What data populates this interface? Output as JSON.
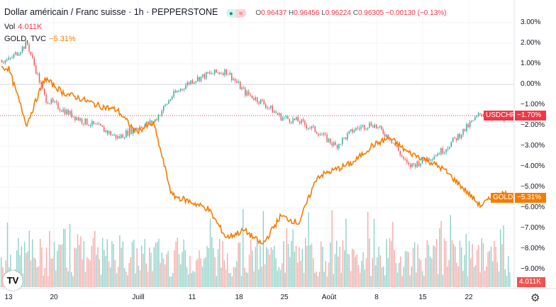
{
  "header": {
    "symbol_title": "Dollar américain / Franc suisse",
    "interval": "1h",
    "exchange": "PEPPERSTONE",
    "separator": "·",
    "ohlc": {
      "o_label": "O",
      "o": "0.96437",
      "h_label": "H",
      "h": "0.96456",
      "l_label": "L",
      "l": "0.96224",
      "c_label": "C",
      "c": "0.96305",
      "change": "−0.00130 (−0.13%)"
    },
    "status_icons": [
      "market-open-dot-icon",
      "delayed-data-icon"
    ]
  },
  "volume_legend": {
    "label": "Vol",
    "value": "4.011K"
  },
  "compare_legend": {
    "label": "GOLD, TVC",
    "value": "−5.31%"
  },
  "colors": {
    "up": "#26a69a",
    "down": "#ef5350",
    "usdchf_tag": "#f23645",
    "gold": "#f57c00",
    "vol_up": "#8fd1c8",
    "vol_down": "#f7a9a7"
  },
  "tags": {
    "usdchf_label": "USDCHF",
    "usdchf_value": "−1.70%",
    "gold_label": "GOLD",
    "gold_value": "−5.31%",
    "volume_value": "4.011K"
  },
  "logo": "TV",
  "chart_data": {
    "type": "line",
    "y_ticks": [
      "3.00%",
      "2.00%",
      "1.00%",
      "0.00%",
      "−1.00%",
      "−2.00%",
      "−3.00%",
      "−4.00%",
      "−5.00%",
      "−6.00%",
      "−7.00%",
      "−8.00%",
      "−9.00%"
    ],
    "ylim": [
      -9.3,
      3.2
    ],
    "x_ticks": [
      "13",
      "20",
      "Juill",
      "11",
      "18",
      "25",
      "Août",
      "8",
      "15",
      "22"
    ],
    "x": [
      "2022-06-13",
      "2022-06-15",
      "2022-06-17",
      "2022-06-21",
      "2022-06-23",
      "2022-06-27",
      "2022-06-29",
      "2022-07-01",
      "2022-07-05",
      "2022-07-07",
      "2022-07-11",
      "2022-07-13",
      "2022-07-15",
      "2022-07-19",
      "2022-07-21",
      "2022-07-25",
      "2022-07-27",
      "2022-07-29",
      "2022-08-02",
      "2022-08-04",
      "2022-08-08",
      "2022-08-10",
      "2022-08-12",
      "2022-08-16",
      "2022-08-18",
      "2022-08-22",
      "2022-08-24",
      "2022-08-26"
    ],
    "series": [
      {
        "name": "USDCHF",
        "style": "candles",
        "values": [
          1.17,
          2.0,
          -0.7,
          -1.25,
          -1.75,
          -2.1,
          -2.6,
          -2.1,
          -1.8,
          -0.55,
          0.15,
          0.5,
          0.65,
          -0.4,
          -0.9,
          -1.6,
          -1.8,
          -2.3,
          -3.0,
          -2.2,
          -1.9,
          -2.6,
          -4.0,
          -3.65,
          -3.15,
          -2.3,
          -1.4,
          -1.7
        ]
      },
      {
        "name": "GOLD",
        "style": "line",
        "values": [
          0.8,
          -1.95,
          0.3,
          -0.4,
          -0.7,
          -1.05,
          -1.25,
          -2.3,
          -1.9,
          -5.4,
          -5.7,
          -6.05,
          -7.45,
          -7.1,
          -7.8,
          -6.4,
          -6.75,
          -4.5,
          -4.15,
          -3.8,
          -3.0,
          -2.6,
          -3.3,
          -3.65,
          -4.15,
          -5.0,
          -5.9,
          -5.31
        ]
      }
    ],
    "grid": true
  }
}
